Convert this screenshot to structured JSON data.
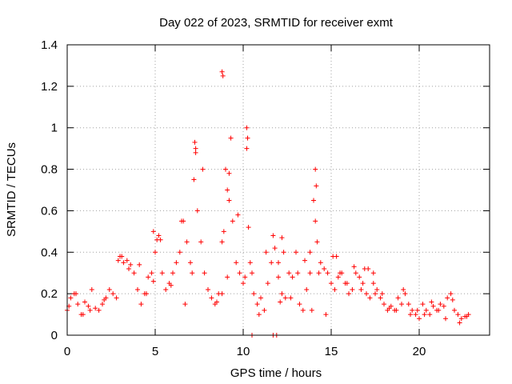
{
  "chart_data": {
    "type": "scatter",
    "title": "Day 022 of 2023, SRMTID for receiver exmt",
    "xlabel": "GPS time / hours",
    "ylabel": "SRMTID / TECUs",
    "xlim": [
      0,
      24
    ],
    "ylim": [
      0,
      1.4
    ],
    "xticks": [
      0,
      5,
      10,
      15,
      20
    ],
    "xtick_labels": [
      "0",
      "5",
      "10",
      "15",
      "20"
    ],
    "yticks": [
      0,
      0.2,
      0.4,
      0.6,
      0.8,
      1,
      1.2,
      1.4
    ],
    "ytick_labels": [
      "0",
      "0.2",
      "0.4",
      "0.6",
      "0.8",
      "1",
      "1.2",
      "1.4"
    ],
    "grid": true,
    "series": [
      {
        "name": "SRMTID",
        "marker": "+",
        "color": "#ff0000",
        "x": [
          0.0,
          0.2,
          0.4,
          0.6,
          0.8,
          1.0,
          1.2,
          1.4,
          1.6,
          1.8,
          2.0,
          2.2,
          2.4,
          2.6,
          2.8,
          3.0,
          3.2,
          3.4,
          3.6,
          3.8,
          4.0,
          4.2,
          4.4,
          4.6,
          4.8,
          5.0,
          5.2,
          5.4,
          5.6,
          5.8,
          6.0,
          6.2,
          6.4,
          6.6,
          6.8,
          7.0,
          7.2,
          7.4,
          7.6,
          7.8,
          8.0,
          8.2,
          8.4,
          8.6,
          8.8,
          9.0,
          9.2,
          9.4,
          9.6,
          9.8,
          10.0,
          10.2,
          10.4,
          10.6,
          10.8,
          11.0,
          11.2,
          11.4,
          11.6,
          11.8,
          12.0,
          12.2,
          12.4,
          12.6,
          12.8,
          13.0,
          13.2,
          13.4,
          13.6,
          13.8,
          14.0,
          14.2,
          14.4,
          14.6,
          14.8,
          15.0,
          15.2,
          15.4,
          15.6,
          15.8,
          16.0,
          16.2,
          16.4,
          16.6,
          16.8,
          17.0,
          17.2,
          17.4,
          17.6,
          17.8,
          18.0,
          18.2,
          18.4,
          18.6,
          18.8,
          19.0,
          19.2,
          19.4,
          19.6,
          19.8,
          20.0,
          20.2,
          20.4,
          20.6,
          20.8,
          21.0,
          21.2,
          21.4,
          21.6,
          21.8,
          22.0,
          22.2,
          22.4,
          22.6,
          22.8,
          0.1,
          0.5,
          0.9,
          1.3,
          2.1,
          2.9,
          3.1,
          3.5,
          4.1,
          4.5,
          4.9,
          5.3,
          5.9,
          6.5,
          6.7,
          7.1,
          7.3,
          7.7,
          8.5,
          8.8,
          8.9,
          9.1,
          9.3,
          9.7,
          10.1,
          10.3,
          10.5,
          10.9,
          11.3,
          11.7,
          12.1,
          12.3,
          12.7,
          13.1,
          13.5,
          13.9,
          14.1,
          14.3,
          14.7,
          15.1,
          15.5,
          15.9,
          16.3,
          16.7,
          17.1,
          17.5,
          17.9,
          18.3,
          18.7,
          19.1,
          19.5,
          19.9,
          20.3,
          20.7,
          21.1,
          21.5,
          21.9,
          22.3,
          22.7,
          8.8,
          8.85,
          10.2,
          10.25,
          14.1,
          14.15,
          7.25,
          7.3,
          9.1,
          9.2,
          12.0,
          12.2,
          13.8,
          15.3,
          16.9,
          17.4,
          4.9,
          5.1,
          10.5,
          11.7,
          11.9
        ],
        "y": [
          0.12,
          0.18,
          0.2,
          0.15,
          0.1,
          0.16,
          0.14,
          0.22,
          0.13,
          0.12,
          0.15,
          0.18,
          0.22,
          0.2,
          0.18,
          0.38,
          0.35,
          0.36,
          0.34,
          0.3,
          0.22,
          0.15,
          0.2,
          0.28,
          0.3,
          0.4,
          0.48,
          0.3,
          0.22,
          0.25,
          0.3,
          0.35,
          0.4,
          0.55,
          0.45,
          0.35,
          0.75,
          0.6,
          0.45,
          0.3,
          0.22,
          0.18,
          0.15,
          0.2,
          0.45,
          0.8,
          0.65,
          0.55,
          0.35,
          0.3,
          0.25,
          0.9,
          0.35,
          0.2,
          0.15,
          0.18,
          0.12,
          0.25,
          0.35,
          0.42,
          0.35,
          0.2,
          0.18,
          0.3,
          0.28,
          0.4,
          0.15,
          0.12,
          0.22,
          0.3,
          0.65,
          0.45,
          0.35,
          0.32,
          0.3,
          0.25,
          0.22,
          0.28,
          0.3,
          0.25,
          0.2,
          0.22,
          0.3,
          0.28,
          0.25,
          0.2,
          0.18,
          0.25,
          0.22,
          0.18,
          0.15,
          0.12,
          0.14,
          0.12,
          0.18,
          0.15,
          0.2,
          0.15,
          0.12,
          0.1,
          0.08,
          0.15,
          0.12,
          0.1,
          0.14,
          0.12,
          0.15,
          0.14,
          0.18,
          0.2,
          0.12,
          0.1,
          0.08,
          0.09,
          0.1,
          0.14,
          0.2,
          0.1,
          0.12,
          0.17,
          0.36,
          0.38,
          0.32,
          0.34,
          0.2,
          0.26,
          0.46,
          0.24,
          0.55,
          0.15,
          0.3,
          0.88,
          0.8,
          0.16,
          0.2,
          0.5,
          0.28,
          0.95,
          0.58,
          0.28,
          0.52,
          0.3,
          0.1,
          0.4,
          0.48,
          0.16,
          0.4,
          0.18,
          0.3,
          0.36,
          0.12,
          0.55,
          0.3,
          0.1,
          0.38,
          0.3,
          0.25,
          0.33,
          0.22,
          0.32,
          0.2,
          0.2,
          0.13,
          0.12,
          0.22,
          0.1,
          0.12,
          0.1,
          0.16,
          0.12,
          0.08,
          0.17,
          0.06,
          0.09,
          1.27,
          1.25,
          1.0,
          0.95,
          0.8,
          0.72,
          0.93,
          0.9,
          0.7,
          0.78,
          0.28,
          0.47,
          0.4,
          0.38,
          0.32,
          0.3,
          0.5,
          0.46,
          0.0,
          0.0,
          0.0
        ]
      }
    ]
  }
}
